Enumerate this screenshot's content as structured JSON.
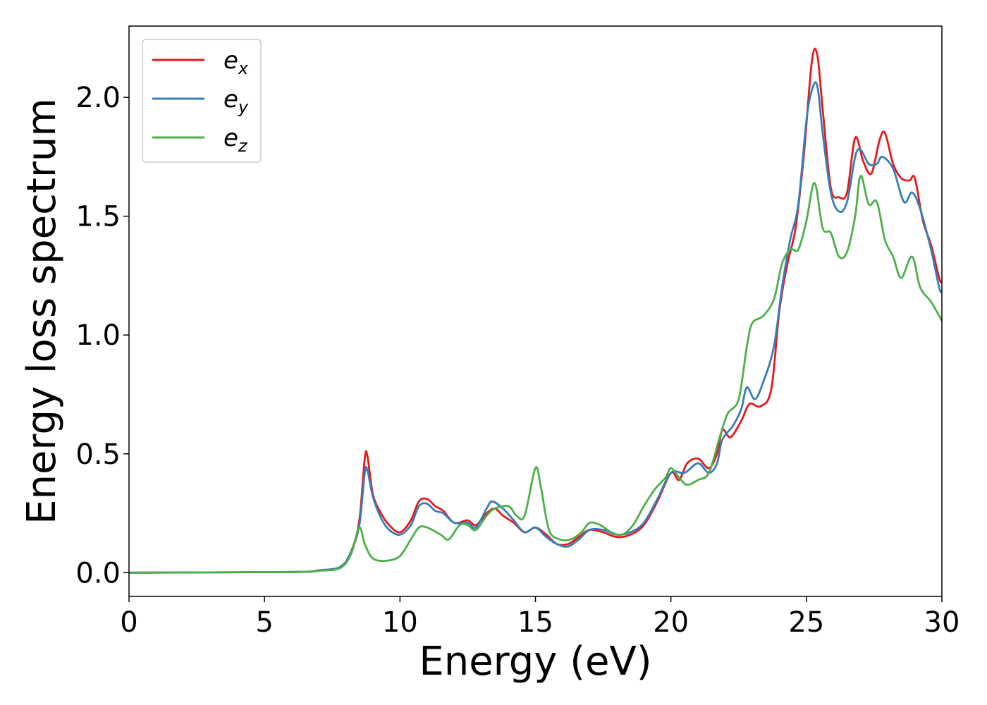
{
  "chart_data": {
    "type": "line",
    "title": "",
    "xlabel": "Energy (eV)",
    "ylabel": "Energy loss spectrum",
    "xlim": [
      0,
      30
    ],
    "ylim": [
      -0.1,
      2.3
    ],
    "x_ticks": [
      0,
      5,
      10,
      15,
      20,
      25,
      30
    ],
    "x_tick_labels": [
      "0",
      "5",
      "10",
      "15",
      "20",
      "25",
      "30"
    ],
    "y_ticks": [
      0.0,
      0.5,
      1.0,
      1.5,
      2.0
    ],
    "y_tick_labels": [
      "0.0",
      "0.5",
      "1.0",
      "1.5",
      "2.0"
    ],
    "grid": false,
    "legend_position": "top-left",
    "series": [
      {
        "name": "e_x",
        "label_base": "e",
        "label_sub": "x",
        "color": "#e41a1c",
        "points": [
          [
            0,
            0
          ],
          [
            6,
            0.003
          ],
          [
            7,
            0.01
          ],
          [
            7.8,
            0.025
          ],
          [
            8.2,
            0.09
          ],
          [
            8.5,
            0.22
          ],
          [
            8.7,
            0.48
          ],
          [
            8.8,
            0.49
          ],
          [
            9.0,
            0.33
          ],
          [
            9.3,
            0.25
          ],
          [
            9.6,
            0.2
          ],
          [
            10.0,
            0.17
          ],
          [
            10.4,
            0.22
          ],
          [
            10.7,
            0.3
          ],
          [
            11.0,
            0.31
          ],
          [
            11.3,
            0.28
          ],
          [
            11.6,
            0.26
          ],
          [
            12.0,
            0.21
          ],
          [
            12.5,
            0.22
          ],
          [
            12.8,
            0.2
          ],
          [
            13.2,
            0.25
          ],
          [
            13.5,
            0.27
          ],
          [
            13.8,
            0.24
          ],
          [
            14.2,
            0.21
          ],
          [
            14.6,
            0.17
          ],
          [
            15.0,
            0.19
          ],
          [
            15.4,
            0.16
          ],
          [
            15.8,
            0.12
          ],
          [
            16.2,
            0.12
          ],
          [
            16.6,
            0.15
          ],
          [
            17.0,
            0.18
          ],
          [
            17.5,
            0.17
          ],
          [
            18.0,
            0.15
          ],
          [
            18.5,
            0.16
          ],
          [
            19.0,
            0.2
          ],
          [
            19.5,
            0.3
          ],
          [
            20.0,
            0.42
          ],
          [
            20.3,
            0.39
          ],
          [
            20.6,
            0.46
          ],
          [
            21.0,
            0.48
          ],
          [
            21.4,
            0.44
          ],
          [
            21.7,
            0.5
          ],
          [
            21.9,
            0.6
          ],
          [
            22.2,
            0.57
          ],
          [
            22.6,
            0.64
          ],
          [
            22.9,
            0.71
          ],
          [
            23.3,
            0.7
          ],
          [
            23.7,
            0.77
          ],
          [
            24.0,
            1.1
          ],
          [
            24.3,
            1.3
          ],
          [
            24.6,
            1.45
          ],
          [
            24.9,
            1.75
          ],
          [
            25.2,
            2.15
          ],
          [
            25.4,
            2.18
          ],
          [
            25.6,
            1.95
          ],
          [
            25.9,
            1.62
          ],
          [
            26.2,
            1.58
          ],
          [
            26.5,
            1.6
          ],
          [
            26.8,
            1.83
          ],
          [
            27.1,
            1.73
          ],
          [
            27.4,
            1.68
          ],
          [
            27.7,
            1.82
          ],
          [
            27.9,
            1.85
          ],
          [
            28.2,
            1.72
          ],
          [
            28.5,
            1.66
          ],
          [
            28.8,
            1.65
          ],
          [
            29.0,
            1.66
          ],
          [
            29.3,
            1.48
          ],
          [
            29.6,
            1.38
          ],
          [
            29.9,
            1.24
          ],
          [
            30,
            1.22
          ]
        ]
      },
      {
        "name": "e_y",
        "label_base": "e",
        "label_sub": "y",
        "color": "#377eb8",
        "points": [
          [
            0,
            0
          ],
          [
            6,
            0.003
          ],
          [
            7,
            0.01
          ],
          [
            7.8,
            0.025
          ],
          [
            8.2,
            0.09
          ],
          [
            8.5,
            0.2
          ],
          [
            8.7,
            0.42
          ],
          [
            8.8,
            0.43
          ],
          [
            9.0,
            0.32
          ],
          [
            9.3,
            0.23
          ],
          [
            9.6,
            0.18
          ],
          [
            10.0,
            0.16
          ],
          [
            10.4,
            0.2
          ],
          [
            10.7,
            0.28
          ],
          [
            11.0,
            0.29
          ],
          [
            11.3,
            0.26
          ],
          [
            11.6,
            0.25
          ],
          [
            12.0,
            0.21
          ],
          [
            12.5,
            0.21
          ],
          [
            12.8,
            0.19
          ],
          [
            13.2,
            0.27
          ],
          [
            13.4,
            0.3
          ],
          [
            13.8,
            0.27
          ],
          [
            14.2,
            0.22
          ],
          [
            14.6,
            0.17
          ],
          [
            15.0,
            0.19
          ],
          [
            15.4,
            0.15
          ],
          [
            15.8,
            0.12
          ],
          [
            16.2,
            0.11
          ],
          [
            16.6,
            0.14
          ],
          [
            17.0,
            0.18
          ],
          [
            17.5,
            0.18
          ],
          [
            18.0,
            0.16
          ],
          [
            18.5,
            0.17
          ],
          [
            19.0,
            0.21
          ],
          [
            19.5,
            0.31
          ],
          [
            20.0,
            0.42
          ],
          [
            20.5,
            0.42
          ],
          [
            21.0,
            0.46
          ],
          [
            21.4,
            0.42
          ],
          [
            21.7,
            0.46
          ],
          [
            21.9,
            0.56
          ],
          [
            22.3,
            0.62
          ],
          [
            22.6,
            0.69
          ],
          [
            22.8,
            0.78
          ],
          [
            23.1,
            0.73
          ],
          [
            23.4,
            0.8
          ],
          [
            23.8,
            0.95
          ],
          [
            24.1,
            1.2
          ],
          [
            24.4,
            1.4
          ],
          [
            24.7,
            1.55
          ],
          [
            25.0,
            1.9
          ],
          [
            25.2,
            2.03
          ],
          [
            25.4,
            2.05
          ],
          [
            25.6,
            1.85
          ],
          [
            25.9,
            1.6
          ],
          [
            26.2,
            1.52
          ],
          [
            26.5,
            1.56
          ],
          [
            26.8,
            1.75
          ],
          [
            27.0,
            1.78
          ],
          [
            27.3,
            1.72
          ],
          [
            27.6,
            1.72
          ],
          [
            27.8,
            1.75
          ],
          [
            28.2,
            1.7
          ],
          [
            28.6,
            1.56
          ],
          [
            28.9,
            1.6
          ],
          [
            29.2,
            1.53
          ],
          [
            29.6,
            1.36
          ],
          [
            29.9,
            1.2
          ],
          [
            30,
            1.18
          ]
        ]
      },
      {
        "name": "e_z",
        "label_base": "e",
        "label_sub": "z",
        "color": "#4daf4a",
        "points": [
          [
            0,
            0
          ],
          [
            6,
            0.003
          ],
          [
            7,
            0.008
          ],
          [
            7.8,
            0.02
          ],
          [
            8.2,
            0.08
          ],
          [
            8.5,
            0.19
          ],
          [
            8.7,
            0.12
          ],
          [
            9.0,
            0.06
          ],
          [
            9.5,
            0.05
          ],
          [
            10.0,
            0.07
          ],
          [
            10.4,
            0.14
          ],
          [
            10.7,
            0.19
          ],
          [
            11.0,
            0.19
          ],
          [
            11.5,
            0.16
          ],
          [
            11.8,
            0.14
          ],
          [
            12.2,
            0.2
          ],
          [
            12.5,
            0.2
          ],
          [
            12.8,
            0.18
          ],
          [
            13.2,
            0.24
          ],
          [
            13.5,
            0.27
          ],
          [
            14.0,
            0.28
          ],
          [
            14.3,
            0.24
          ],
          [
            14.6,
            0.24
          ],
          [
            15.0,
            0.44
          ],
          [
            15.2,
            0.36
          ],
          [
            15.5,
            0.18
          ],
          [
            15.9,
            0.14
          ],
          [
            16.3,
            0.14
          ],
          [
            16.7,
            0.17
          ],
          [
            17.0,
            0.21
          ],
          [
            17.4,
            0.2
          ],
          [
            17.8,
            0.17
          ],
          [
            18.2,
            0.16
          ],
          [
            18.6,
            0.2
          ],
          [
            19.0,
            0.28
          ],
          [
            19.4,
            0.35
          ],
          [
            19.8,
            0.4
          ],
          [
            20.0,
            0.44
          ],
          [
            20.3,
            0.4
          ],
          [
            20.6,
            0.37
          ],
          [
            21.0,
            0.39
          ],
          [
            21.4,
            0.42
          ],
          [
            21.8,
            0.57
          ],
          [
            22.1,
            0.67
          ],
          [
            22.5,
            0.73
          ],
          [
            22.8,
            0.95
          ],
          [
            23.0,
            1.05
          ],
          [
            23.4,
            1.08
          ],
          [
            23.8,
            1.15
          ],
          [
            24.1,
            1.3
          ],
          [
            24.4,
            1.36
          ],
          [
            24.7,
            1.36
          ],
          [
            25.0,
            1.48
          ],
          [
            25.3,
            1.64
          ],
          [
            25.6,
            1.45
          ],
          [
            25.9,
            1.43
          ],
          [
            26.2,
            1.33
          ],
          [
            26.5,
            1.35
          ],
          [
            26.8,
            1.5
          ],
          [
            27.0,
            1.67
          ],
          [
            27.3,
            1.55
          ],
          [
            27.6,
            1.56
          ],
          [
            27.9,
            1.4
          ],
          [
            28.2,
            1.33
          ],
          [
            28.5,
            1.24
          ],
          [
            28.9,
            1.33
          ],
          [
            29.2,
            1.2
          ],
          [
            29.6,
            1.14
          ],
          [
            30,
            1.06
          ]
        ]
      }
    ]
  }
}
